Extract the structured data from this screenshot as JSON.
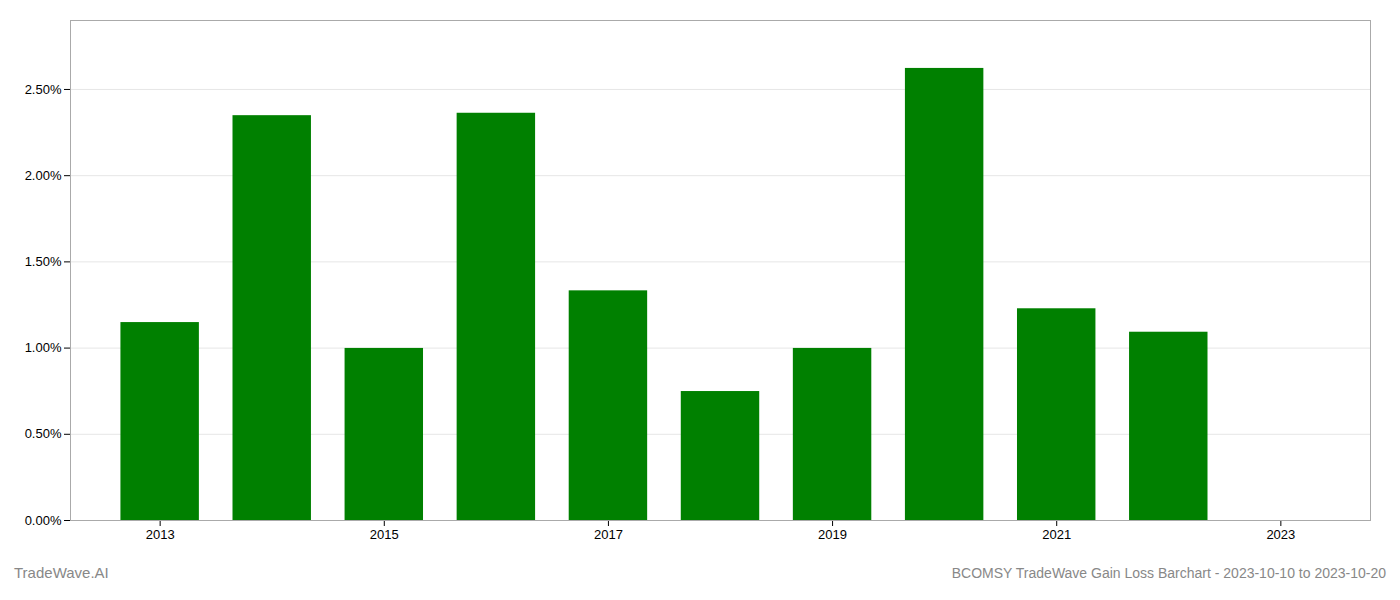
{
  "chart_data": {
    "type": "bar",
    "title": "BCOMSY TradeWave Gain Loss Barchart - 2023-10-10 to 2023-10-20",
    "annotations": [
      "TradeWave.AI"
    ],
    "x": [
      2013,
      2014,
      2015,
      2016,
      2017,
      2018,
      2019,
      2020,
      2021,
      2022
    ],
    "values": [
      0.01148,
      0.02348,
      0.00998,
      0.02362,
      0.01332,
      0.00748,
      0.00998,
      0.02622,
      0.01228,
      0.01092
    ],
    "color": "#008000",
    "xlim": [
      2012.2,
      2023.8
    ],
    "xticks": [
      2013,
      2015,
      2017,
      2019,
      2021,
      2023
    ],
    "ylim": [
      0,
      0.029
    ],
    "yticks": [
      {
        "value": 0.0,
        "label": "0.00%"
      },
      {
        "value": 0.005,
        "label": "0.50%"
      },
      {
        "value": 0.01,
        "label": "1.00%"
      },
      {
        "value": 0.015,
        "label": "1.50%"
      },
      {
        "value": 0.02,
        "label": "2.00%"
      },
      {
        "value": 0.025,
        "label": "2.50%"
      }
    ],
    "grid": true
  }
}
